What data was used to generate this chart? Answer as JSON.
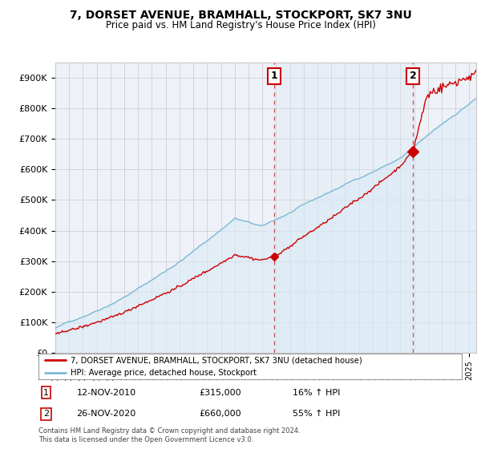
{
  "title": "7, DORSET AVENUE, BRAMHALL, STOCKPORT, SK7 3NU",
  "subtitle": "Price paid vs. HM Land Registry's House Price Index (HPI)",
  "ylabel_ticks": [
    "£0",
    "£100K",
    "£200K",
    "£300K",
    "£400K",
    "£500K",
    "£600K",
    "£700K",
    "£800K",
    "£900K"
  ],
  "ytick_vals": [
    0,
    100000,
    200000,
    300000,
    400000,
    500000,
    600000,
    700000,
    800000,
    900000
  ],
  "ylim": [
    0,
    950000
  ],
  "xlim_start": 1995.0,
  "xlim_end": 2025.5,
  "sale1_date": 2010.87,
  "sale1_price": 315000,
  "sale2_date": 2020.91,
  "sale2_price": 660000,
  "legend_line1": "7, DORSET AVENUE, BRAMHALL, STOCKPORT, SK7 3NU (detached house)",
  "legend_line2": "HPI: Average price, detached house, Stockport",
  "footnote": "Contains HM Land Registry data © Crown copyright and database right 2024.\nThis data is licensed under the Open Government Licence v3.0.",
  "line_color_house": "#cc0000",
  "line_color_hpi": "#7eb8d4",
  "fill_color_hpi": "#daeaf5",
  "shade_color": "#dce8f5",
  "background_plot": "#eef2f8",
  "background_fig": "#ffffff",
  "grid_color": "#c8c8c8",
  "vline_color": "#cc0000",
  "ann1_date": "12-NOV-2010",
  "ann1_price": "£315,000",
  "ann1_pct": "16% ↑ HPI",
  "ann2_date": "26-NOV-2020",
  "ann2_price": "£660,000",
  "ann2_pct": "55% ↑ HPI"
}
